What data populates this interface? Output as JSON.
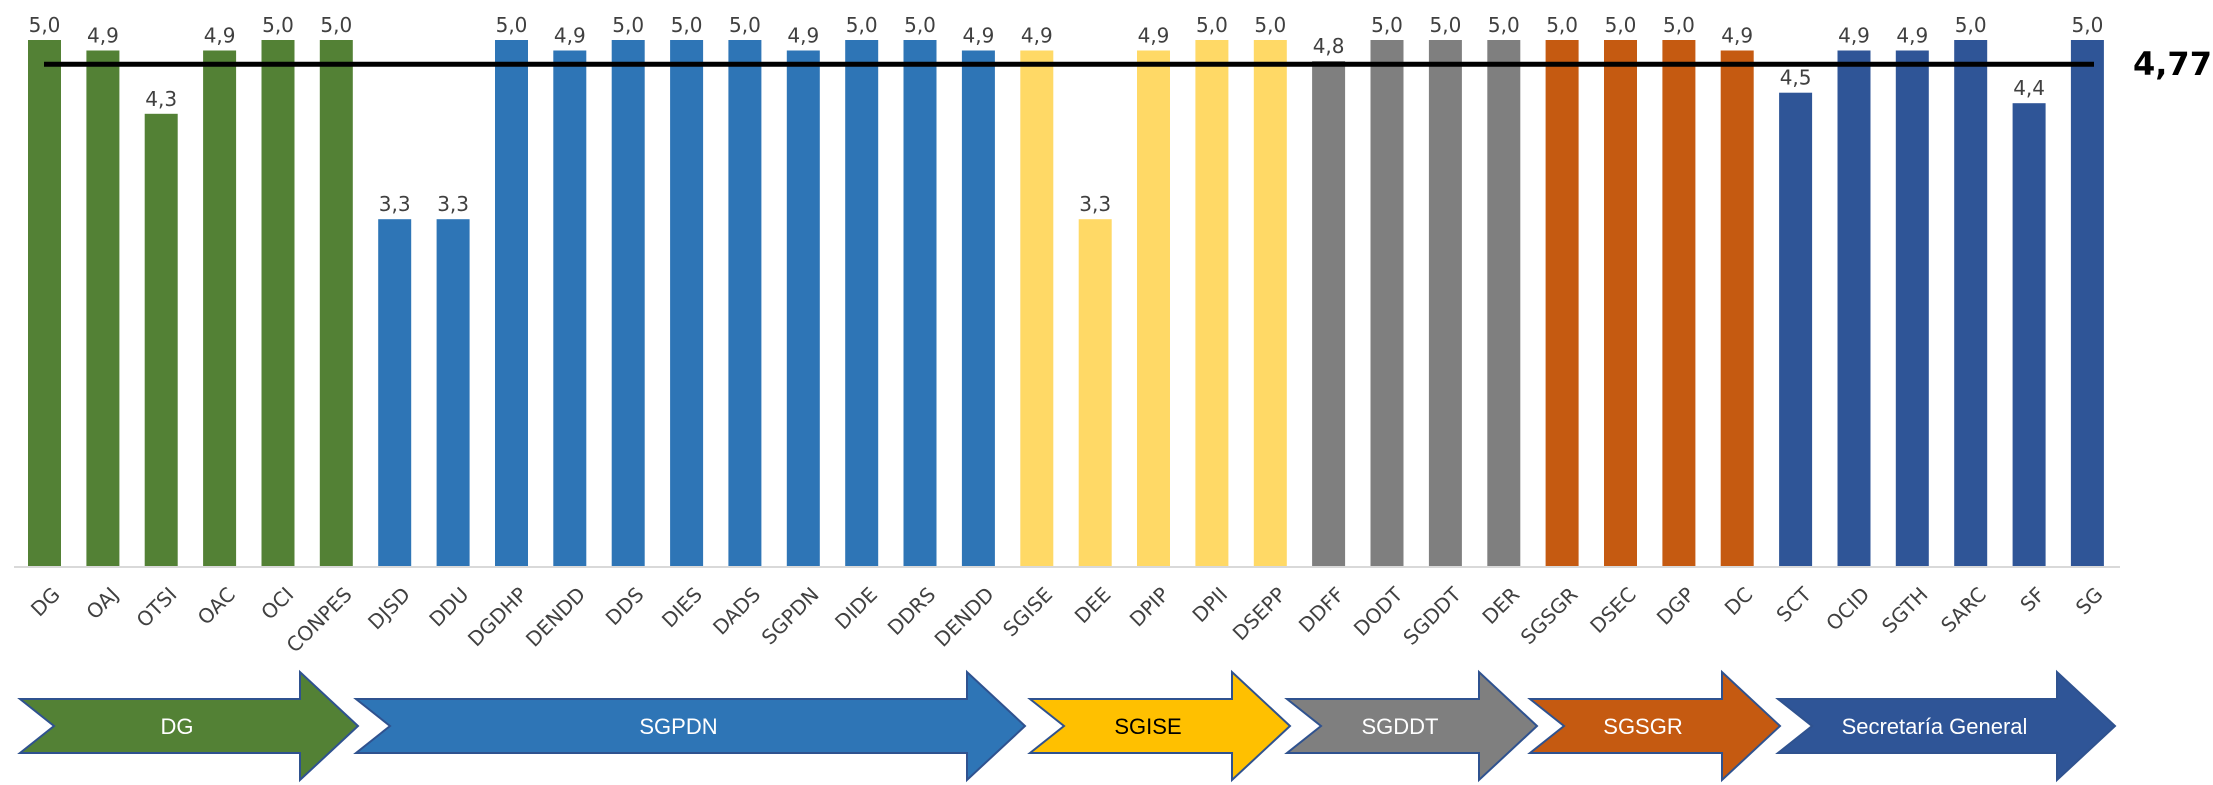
{
  "chart_data": {
    "type": "bar",
    "categories": [
      "DG",
      "OAJ",
      "OTSI",
      "OAC",
      "OCI",
      "CONPES",
      "DJSD",
      "DDU",
      "DGDHP",
      "DENDD",
      "DDS",
      "DIES",
      "DADS",
      "SGPDN",
      "DIDE",
      "DDRS",
      "DENDD",
      "SGISE",
      "DEE",
      "DPIP",
      "DPII",
      "DSEPP",
      "DDFF",
      "DODT",
      "SGDDT",
      "DER",
      "SGSGR",
      "DSEC",
      "DGP",
      "DC",
      "SCT",
      "OCID",
      "SGTH",
      "SARC",
      "SF",
      "SG"
    ],
    "values": [
      5.0,
      4.9,
      4.3,
      4.9,
      5.0,
      5.0,
      3.3,
      3.3,
      5.0,
      4.9,
      5.0,
      5.0,
      5.0,
      4.9,
      5.0,
      5.0,
      4.9,
      4.9,
      3.3,
      4.9,
      5.0,
      5.0,
      4.8,
      5.0,
      5.0,
      5.0,
      5.0,
      5.0,
      5.0,
      4.9,
      4.5,
      4.9,
      4.9,
      5.0,
      4.4,
      5.0
    ],
    "value_labels": [
      "5,0",
      "4,9",
      "4,3",
      "4,9",
      "5,0",
      "5,0",
      "3,3",
      "3,3",
      "5,0",
      "4,9",
      "5,0",
      "5,0",
      "5,0",
      "4,9",
      "5,0",
      "5,0",
      "4,9",
      "4,9",
      "3,3",
      "4,9",
      "5,0",
      "5,0",
      "4,8",
      "5,0",
      "5,0",
      "5,0",
      "5,0",
      "5,0",
      "5,0",
      "4,9",
      "4,5",
      "4,9",
      "4,9",
      "5,0",
      "4,4",
      "5,0"
    ],
    "groups": [
      {
        "name": "DG",
        "start": 0,
        "end": 5,
        "color": "#538135",
        "text_color": "#ffffff"
      },
      {
        "name": "SGPDN",
        "start": 6,
        "end": 16,
        "color": "#2E75B6",
        "text_color": "#ffffff"
      },
      {
        "name": "SGISE",
        "start": 17,
        "end": 21,
        "color": "#FFD966",
        "arrow_color": "#FFC000",
        "text_color": "#000000"
      },
      {
        "name": "SGDDT",
        "start": 22,
        "end": 25,
        "color": "#7F7F7F",
        "text_color": "#ffffff"
      },
      {
        "name": "SGSGR",
        "start": 26,
        "end": 29,
        "color": "#C55A11",
        "text_color": "#ffffff"
      },
      {
        "name": "Secretaría General",
        "start": 30,
        "end": 35,
        "color": "#2F5597",
        "text_color": "#ffffff"
      }
    ],
    "average": 4.77,
    "average_label": "4,77",
    "ylim": [
      0,
      5.3
    ],
    "grid": false,
    "legend": "none",
    "title": "",
    "xlabel": "",
    "ylabel": ""
  }
}
